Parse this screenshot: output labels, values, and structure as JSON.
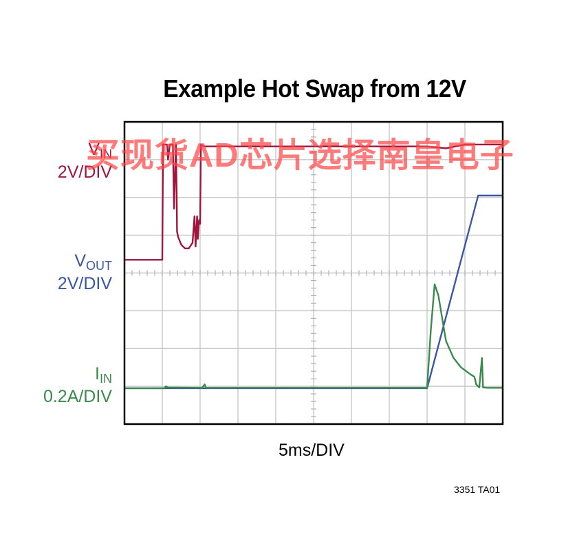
{
  "chart_data": {
    "type": "line",
    "title": "Example Hot Swap from 12V",
    "xlabel": "5ms/DIV",
    "grid": true,
    "divisions": {
      "x": 10,
      "y": 8
    },
    "channels": [
      {
        "name": "VIN",
        "label_main": "V",
        "label_sub": "IN",
        "scale": "2V/DIV",
        "color": "#a0153e"
      },
      {
        "name": "VOUT",
        "label_main": "V",
        "label_sub": "OUT",
        "scale": "2V/DIV",
        "color": "#3a55a4"
      },
      {
        "name": "IIN",
        "label_main": "I",
        "label_sub": "IN",
        "scale": "0.2A/DIV",
        "color": "#3a8a4e"
      }
    ],
    "series": [
      {
        "name": "VIN",
        "color": "#a0153e",
        "points": [
          [
            0,
            4.35
          ],
          [
            1,
            4.35
          ],
          [
            1.02,
            7.4
          ],
          [
            1.13,
            7.4
          ],
          [
            1.15,
            7.0
          ],
          [
            1.2,
            7.4
          ],
          [
            1.28,
            7.4
          ],
          [
            1.31,
            5.7
          ],
          [
            1.36,
            7.4
          ],
          [
            1.38,
            6.1
          ],
          [
            1.39,
            5.1
          ],
          [
            1.42,
            4.95
          ],
          [
            1.5,
            4.75
          ],
          [
            1.6,
            4.65
          ],
          [
            1.7,
            4.65
          ],
          [
            1.8,
            4.8
          ],
          [
            1.85,
            5.5
          ],
          [
            1.88,
            4.7
          ],
          [
            1.92,
            5.5
          ],
          [
            1.94,
            4.9
          ],
          [
            1.97,
            5.4
          ],
          [
            2.0,
            5.3
          ],
          [
            2.02,
            7.4
          ],
          [
            2.1,
            7.35
          ],
          [
            4,
            7.35
          ],
          [
            6,
            7.35
          ],
          [
            8,
            7.35
          ],
          [
            8.5,
            7.3
          ],
          [
            9,
            7.4
          ],
          [
            10,
            7.4
          ]
        ]
      },
      {
        "name": "VOUT",
        "color": "#3a55a4",
        "points": [
          [
            0,
            0.95
          ],
          [
            8.0,
            0.95
          ],
          [
            9.35,
            6.05
          ],
          [
            10,
            6.05
          ]
        ]
      },
      {
        "name": "IIN",
        "color": "#3a8a4e",
        "points": [
          [
            0,
            0.95
          ],
          [
            1.05,
            0.95
          ],
          [
            1.1,
            1.0
          ],
          [
            1.15,
            0.97
          ],
          [
            2.05,
            0.96
          ],
          [
            2.12,
            1.05
          ],
          [
            2.15,
            0.96
          ],
          [
            4,
            0.96
          ],
          [
            8.0,
            0.96
          ],
          [
            8.1,
            2.5
          ],
          [
            8.2,
            3.7
          ],
          [
            8.3,
            3.4
          ],
          [
            8.5,
            2.2
          ],
          [
            8.7,
            1.75
          ],
          [
            8.9,
            1.5
          ],
          [
            9.1,
            1.35
          ],
          [
            9.25,
            1.25
          ],
          [
            9.3,
            1.05
          ],
          [
            9.38,
            0.97
          ],
          [
            9.45,
            1.75
          ],
          [
            9.48,
            0.97
          ],
          [
            9.6,
            0.96
          ],
          [
            10,
            0.96
          ]
        ]
      }
    ]
  },
  "watermark": "买现货AD芯片选择南皇电子",
  "part_number": "3351 TA01"
}
